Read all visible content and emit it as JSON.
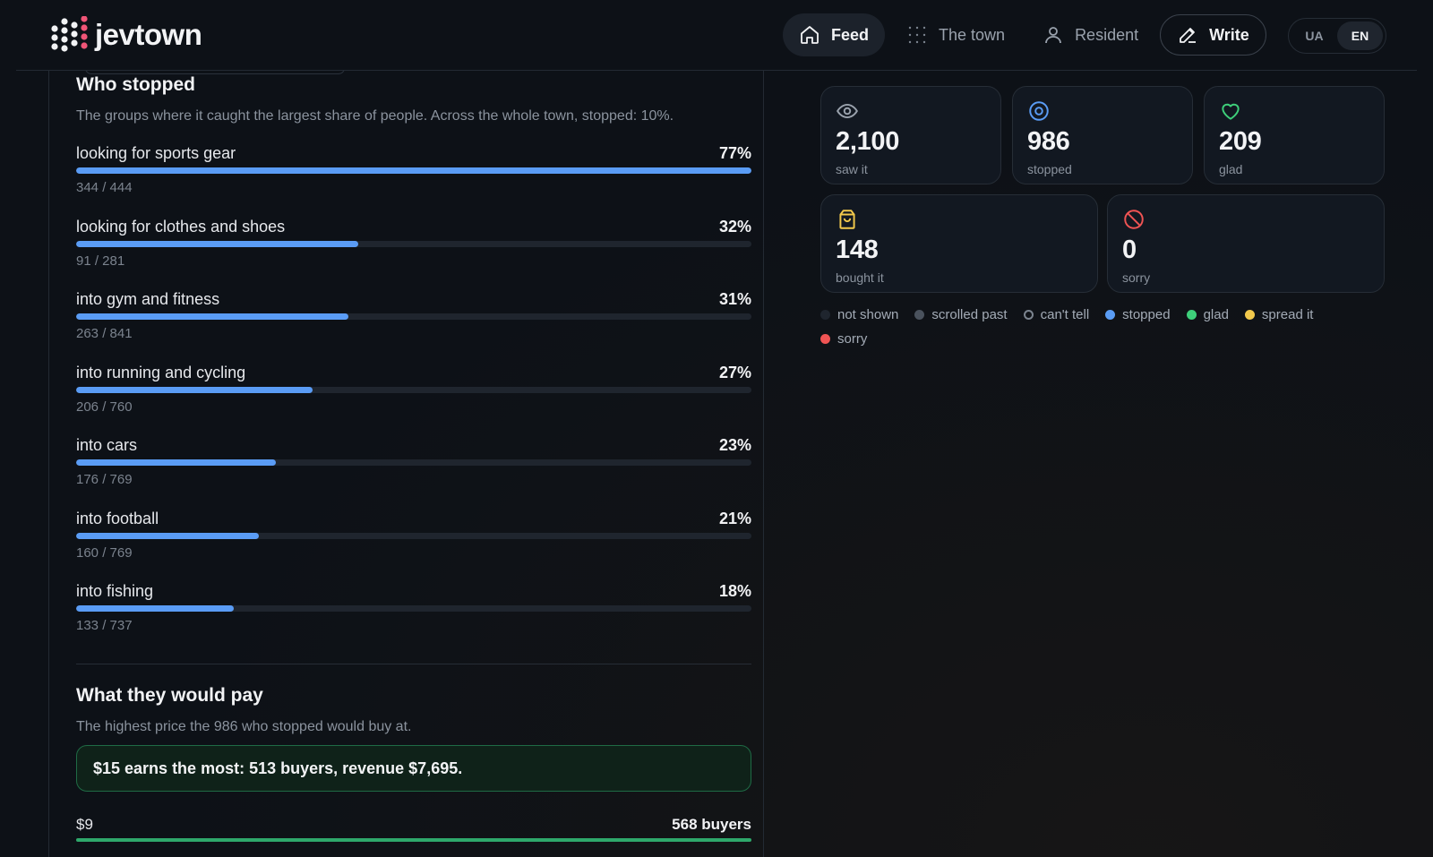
{
  "header": {
    "logo_text": "jevtown",
    "nav": [
      {
        "label": "Feed",
        "icon": "home-icon",
        "active": true
      },
      {
        "label": "The town",
        "icon": "grid-icon"
      },
      {
        "label": "Resident",
        "icon": "user-icon"
      },
      {
        "label": "Write",
        "icon": "pencil-icon"
      }
    ],
    "languages": [
      "UA",
      "EN"
    ],
    "active_language": "EN"
  },
  "who_stopped": {
    "title": "Who stopped",
    "subtitle": "The groups where it caught the largest share of people. Across the whole town, stopped: 10%.",
    "groups": [
      {
        "label": "looking for sports gear",
        "pct": "77%",
        "count": "344 / 444",
        "share": 1.0
      },
      {
        "label": "looking for clothes and shoes",
        "pct": "32%",
        "count": "91 / 281",
        "share": 0.418
      },
      {
        "label": "into gym and fitness",
        "pct": "31%",
        "count": "263 / 841",
        "share": 0.403
      },
      {
        "label": "into running and cycling",
        "pct": "27%",
        "count": "206 / 760",
        "share": 0.35
      },
      {
        "label": "into cars",
        "pct": "23%",
        "count": "176 / 769",
        "share": 0.296
      },
      {
        "label": "into football",
        "pct": "21%",
        "count": "160 / 769",
        "share": 0.27
      },
      {
        "label": "into fishing",
        "pct": "18%",
        "count": "133 / 737",
        "share": 0.233
      }
    ]
  },
  "would_pay": {
    "title": "What they would pay",
    "subtitle": "The highest price the 986 who stopped would buy at.",
    "highlight": "$15 earns the most: 513 buyers, revenue $7,695.",
    "first_row": {
      "price": "$9",
      "buyers": "568 buyers"
    }
  },
  "stats": {
    "saw": {
      "value": "2,100",
      "label": "saw it",
      "icon": "eye-icon",
      "color": "#9aa2ad"
    },
    "stopped": {
      "value": "986",
      "label": "stopped",
      "icon": "target-icon",
      "color": "#5a9cf5"
    },
    "glad": {
      "value": "209",
      "label": "glad",
      "icon": "heart-icon",
      "color": "#3ecf7a"
    },
    "bought": {
      "value": "148",
      "label": "bought it",
      "icon": "bag-icon",
      "color": "#f2c94c"
    },
    "sorry": {
      "value": "0",
      "label": "sorry",
      "icon": "block-icon",
      "color": "#f05454"
    }
  },
  "legend": [
    {
      "label": "not shown",
      "color": "#1f252e"
    },
    {
      "label": "scrolled past",
      "color": "#4a525d"
    },
    {
      "label": "can't tell",
      "color": "ring"
    },
    {
      "label": "stopped",
      "color": "#5a9cf5"
    },
    {
      "label": "glad",
      "color": "#3ecf7a"
    },
    {
      "label": "spread it",
      "color": "#f2c94c"
    },
    {
      "label": "sorry",
      "color": "#f05454"
    }
  ]
}
